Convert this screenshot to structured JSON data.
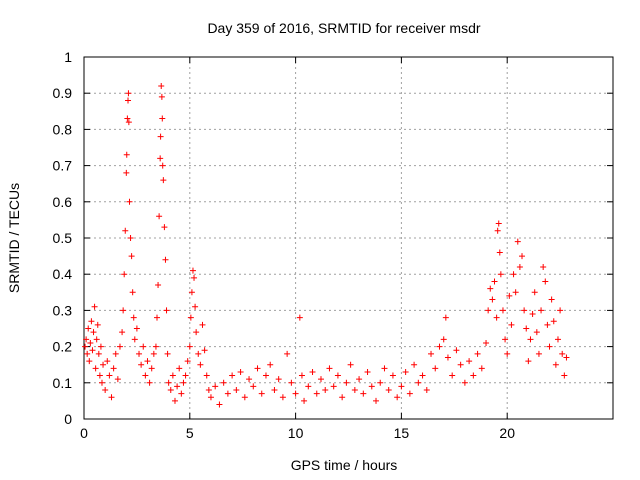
{
  "chart_data": {
    "type": "scatter",
    "title": "Day 359 of 2016, SRMTID for receiver msdr",
    "xlabel": "GPS time / hours",
    "ylabel": "SRMTID / TECUs",
    "xlim": [
      0,
      25
    ],
    "ylim": [
      0,
      1
    ],
    "xticks": [
      "0",
      "5",
      "10",
      "15",
      "20"
    ],
    "yticks": [
      "0",
      "0.1",
      "0.2",
      "0.3",
      "0.4",
      "0.5",
      "0.6",
      "0.7",
      "0.8",
      "0.9",
      "1"
    ],
    "grid": true,
    "marker": "+",
    "series": [
      {
        "color": "#ff0000",
        "points": [
          [
            0.05,
            0.2
          ],
          [
            0.1,
            0.22
          ],
          [
            0.15,
            0.18
          ],
          [
            0.2,
            0.25
          ],
          [
            0.25,
            0.16
          ],
          [
            0.3,
            0.21
          ],
          [
            0.35,
            0.27
          ],
          [
            0.4,
            0.19
          ],
          [
            0.45,
            0.24
          ],
          [
            0.5,
            0.31
          ],
          [
            0.55,
            0.14
          ],
          [
            0.6,
            0.22
          ],
          [
            0.65,
            0.26
          ],
          [
            0.7,
            0.18
          ],
          [
            0.75,
            0.12
          ],
          [
            0.8,
            0.2
          ],
          [
            0.85,
            0.1
          ],
          [
            0.9,
            0.15
          ],
          [
            1.0,
            0.08
          ],
          [
            1.1,
            0.16
          ],
          [
            1.2,
            0.12
          ],
          [
            1.3,
            0.06
          ],
          [
            1.4,
            0.14
          ],
          [
            1.5,
            0.18
          ],
          [
            1.6,
            0.11
          ],
          [
            1.7,
            0.2
          ],
          [
            1.8,
            0.24
          ],
          [
            1.85,
            0.3
          ],
          [
            1.9,
            0.4
          ],
          [
            1.95,
            0.52
          ],
          [
            2.0,
            0.68
          ],
          [
            2.02,
            0.73
          ],
          [
            2.05,
            0.83
          ],
          [
            2.08,
            0.88
          ],
          [
            2.1,
            0.9
          ],
          [
            2.12,
            0.82
          ],
          [
            2.15,
            0.6
          ],
          [
            2.2,
            0.5
          ],
          [
            2.25,
            0.45
          ],
          [
            2.3,
            0.35
          ],
          [
            2.35,
            0.28
          ],
          [
            2.4,
            0.22
          ],
          [
            2.5,
            0.25
          ],
          [
            2.6,
            0.18
          ],
          [
            2.7,
            0.15
          ],
          [
            2.8,
            0.2
          ],
          [
            2.9,
            0.12
          ],
          [
            3.0,
            0.16
          ],
          [
            3.1,
            0.1
          ],
          [
            3.2,
            0.14
          ],
          [
            3.3,
            0.18
          ],
          [
            3.4,
            0.2
          ],
          [
            3.45,
            0.28
          ],
          [
            3.5,
            0.37
          ],
          [
            3.55,
            0.56
          ],
          [
            3.6,
            0.72
          ],
          [
            3.62,
            0.78
          ],
          [
            3.65,
            0.92
          ],
          [
            3.68,
            0.89
          ],
          [
            3.7,
            0.83
          ],
          [
            3.72,
            0.7
          ],
          [
            3.75,
            0.66
          ],
          [
            3.8,
            0.53
          ],
          [
            3.85,
            0.44
          ],
          [
            3.9,
            0.3
          ],
          [
            3.95,
            0.18
          ],
          [
            4.0,
            0.1
          ],
          [
            4.1,
            0.08
          ],
          [
            4.2,
            0.12
          ],
          [
            4.3,
            0.05
          ],
          [
            4.4,
            0.09
          ],
          [
            4.5,
            0.14
          ],
          [
            4.6,
            0.07
          ],
          [
            4.7,
            0.1
          ],
          [
            4.8,
            0.12
          ],
          [
            4.9,
            0.16
          ],
          [
            5.0,
            0.2
          ],
          [
            5.05,
            0.28
          ],
          [
            5.1,
            0.35
          ],
          [
            5.15,
            0.41
          ],
          [
            5.2,
            0.39
          ],
          [
            5.25,
            0.31
          ],
          [
            5.3,
            0.24
          ],
          [
            5.4,
            0.18
          ],
          [
            5.5,
            0.15
          ],
          [
            5.6,
            0.26
          ],
          [
            5.7,
            0.19
          ],
          [
            5.8,
            0.12
          ],
          [
            5.9,
            0.08
          ],
          [
            6.0,
            0.06
          ],
          [
            6.2,
            0.09
          ],
          [
            6.4,
            0.04
          ],
          [
            6.6,
            0.1
          ],
          [
            6.8,
            0.07
          ],
          [
            7.0,
            0.12
          ],
          [
            7.2,
            0.08
          ],
          [
            7.4,
            0.13
          ],
          [
            7.6,
            0.06
          ],
          [
            7.8,
            0.11
          ],
          [
            8.0,
            0.09
          ],
          [
            8.2,
            0.14
          ],
          [
            8.4,
            0.07
          ],
          [
            8.6,
            0.12
          ],
          [
            8.8,
            0.15
          ],
          [
            9.0,
            0.08
          ],
          [
            9.2,
            0.11
          ],
          [
            9.4,
            0.06
          ],
          [
            9.6,
            0.18
          ],
          [
            9.8,
            0.1
          ],
          [
            10.0,
            0.07
          ],
          [
            10.2,
            0.28
          ],
          [
            10.3,
            0.12
          ],
          [
            10.4,
            0.05
          ],
          [
            10.6,
            0.09
          ],
          [
            10.8,
            0.13
          ],
          [
            11.0,
            0.07
          ],
          [
            11.2,
            0.11
          ],
          [
            11.4,
            0.08
          ],
          [
            11.6,
            0.14
          ],
          [
            11.8,
            0.09
          ],
          [
            12.0,
            0.12
          ],
          [
            12.2,
            0.06
          ],
          [
            12.4,
            0.1
          ],
          [
            12.6,
            0.15
          ],
          [
            12.8,
            0.08
          ],
          [
            13.0,
            0.11
          ],
          [
            13.2,
            0.07
          ],
          [
            13.4,
            0.13
          ],
          [
            13.6,
            0.09
          ],
          [
            13.8,
            0.05
          ],
          [
            14.0,
            0.1
          ],
          [
            14.2,
            0.14
          ],
          [
            14.4,
            0.08
          ],
          [
            14.6,
            0.12
          ],
          [
            14.8,
            0.06
          ],
          [
            15.0,
            0.09
          ],
          [
            15.2,
            0.13
          ],
          [
            15.4,
            0.07
          ],
          [
            15.6,
            0.15
          ],
          [
            15.8,
            0.1
          ],
          [
            16.0,
            0.12
          ],
          [
            16.2,
            0.08
          ],
          [
            16.4,
            0.18
          ],
          [
            16.6,
            0.14
          ],
          [
            16.8,
            0.2
          ],
          [
            17.0,
            0.22
          ],
          [
            17.1,
            0.28
          ],
          [
            17.2,
            0.17
          ],
          [
            17.4,
            0.12
          ],
          [
            17.6,
            0.19
          ],
          [
            17.8,
            0.15
          ],
          [
            18.0,
            0.1
          ],
          [
            18.2,
            0.16
          ],
          [
            18.4,
            0.12
          ],
          [
            18.6,
            0.18
          ],
          [
            18.8,
            0.14
          ],
          [
            19.0,
            0.21
          ],
          [
            19.1,
            0.3
          ],
          [
            19.2,
            0.36
          ],
          [
            19.3,
            0.33
          ],
          [
            19.4,
            0.38
          ],
          [
            19.5,
            0.28
          ],
          [
            19.55,
            0.52
          ],
          [
            19.6,
            0.54
          ],
          [
            19.65,
            0.46
          ],
          [
            19.7,
            0.4
          ],
          [
            19.8,
            0.3
          ],
          [
            19.9,
            0.22
          ],
          [
            20.0,
            0.18
          ],
          [
            20.1,
            0.34
          ],
          [
            20.2,
            0.26
          ],
          [
            20.3,
            0.4
          ],
          [
            20.4,
            0.35
          ],
          [
            20.5,
            0.49
          ],
          [
            20.6,
            0.42
          ],
          [
            20.7,
            0.45
          ],
          [
            20.8,
            0.3
          ],
          [
            20.9,
            0.25
          ],
          [
            21.0,
            0.16
          ],
          [
            21.1,
            0.22
          ],
          [
            21.2,
            0.29
          ],
          [
            21.3,
            0.35
          ],
          [
            21.4,
            0.24
          ],
          [
            21.5,
            0.18
          ],
          [
            21.6,
            0.3
          ],
          [
            21.7,
            0.42
          ],
          [
            21.8,
            0.38
          ],
          [
            21.9,
            0.26
          ],
          [
            22.0,
            0.2
          ],
          [
            22.1,
            0.33
          ],
          [
            22.2,
            0.27
          ],
          [
            22.3,
            0.15
          ],
          [
            22.4,
            0.22
          ],
          [
            22.5,
            0.3
          ],
          [
            22.6,
            0.18
          ],
          [
            22.7,
            0.12
          ],
          [
            22.8,
            0.17
          ]
        ]
      }
    ]
  }
}
